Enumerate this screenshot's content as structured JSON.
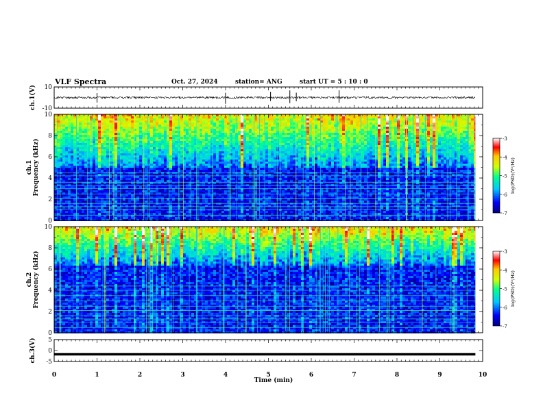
{
  "header": {
    "title": "VLF Spectra",
    "date": "Oct. 27, 2024",
    "station": "station= ANG",
    "start_ut": "start UT =  5 : 10 : 0"
  },
  "chart_data": [
    {
      "type": "line",
      "name": "ch1-waveform",
      "ylabel": "ch.1(V)",
      "ylim": [
        -10,
        10
      ],
      "yticks": [
        "10",
        "-10"
      ],
      "xlim": [
        0,
        10
      ],
      "waveform": {
        "baseline": 0,
        "amplitude": 1.0
      },
      "spikes_min": [
        1.0,
        4.0,
        5.05,
        5.5,
        5.65,
        6.65
      ]
    },
    {
      "type": "heatmap",
      "name": "ch1-spectrogram",
      "ylabel": "ch.1\nFrequency (kHz)",
      "ylim": [
        0,
        10
      ],
      "yticks": [
        "0",
        "2",
        "4",
        "6",
        "8",
        "10"
      ],
      "xlim": [
        0,
        10
      ],
      "data_end_min": 9.83,
      "colorbar": {
        "label": "log(PSD)(V²/Hz)",
        "ticks": [
          "-3",
          "-4",
          "-5",
          "-6",
          "-7"
        ],
        "range": [
          -7,
          -3
        ]
      },
      "horizontal_lines_khz": [
        0.5,
        1.0,
        1.3,
        1.6,
        2.1,
        2.5,
        3.0,
        3.3,
        3.6,
        4.2,
        4.5
      ],
      "upper_band_khz": [
        5.0,
        10.0
      ]
    },
    {
      "type": "heatmap",
      "name": "ch2-spectrogram",
      "ylabel": "ch.2\nFrequency (kHz)",
      "ylim": [
        0,
        10
      ],
      "yticks": [
        "0",
        "2",
        "4",
        "6",
        "8",
        "10"
      ],
      "xlim": [
        0,
        10
      ],
      "data_end_min": 9.83,
      "colorbar": {
        "label": "log(PSD)(V²/Hz)",
        "ticks": [
          "-3",
          "-4",
          "-5",
          "-6",
          "-7"
        ],
        "range": [
          -7,
          -3
        ]
      },
      "horizontal_lines_khz": [
        0.5,
        1.0,
        1.3,
        1.6,
        2.1,
        2.5,
        3.0,
        3.5,
        4.0,
        4.4
      ],
      "upper_band_khz": [
        6.5,
        10.0
      ]
    },
    {
      "type": "line",
      "name": "ch3-waveform",
      "ylabel": "ch.3(V)",
      "ylim": [
        -5,
        5
      ],
      "yticks": [
        "5",
        "0",
        "-5"
      ],
      "xlim": [
        0,
        10
      ],
      "constant_value": -1.7
    }
  ],
  "x_axis": {
    "label": "Time (min)",
    "ticks": [
      "0",
      "1",
      "2",
      "3",
      "4",
      "5",
      "6",
      "7",
      "8",
      "9",
      "10"
    ]
  },
  "colors": {
    "background": "#ffffff",
    "axis": "#000000",
    "trace": "#000000"
  }
}
